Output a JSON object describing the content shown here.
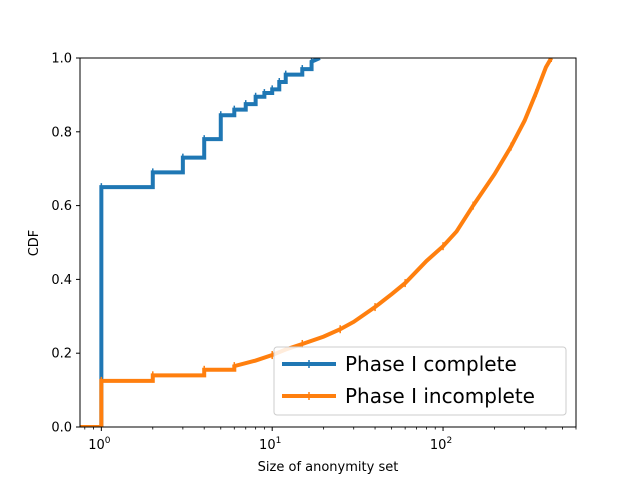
{
  "chart_data": {
    "type": "line",
    "xlabel": "Size of anonymity set",
    "ylabel": "CDF",
    "xscale": "log",
    "xlim": [
      0.75,
      600
    ],
    "ylim": [
      0,
      1
    ],
    "x_ticks": [
      {
        "value": 1,
        "base": "10",
        "exp": "0"
      },
      {
        "value": 10,
        "base": "10",
        "exp": "1"
      },
      {
        "value": 100,
        "base": "10",
        "exp": "2"
      }
    ],
    "y_ticks": [
      "0.0",
      "0.2",
      "0.4",
      "0.6",
      "0.8",
      "1.0"
    ],
    "legend_position": "lower-right",
    "grid": false,
    "series": [
      {
        "name": "Phase I complete",
        "color": "#1f77b4",
        "style": "step",
        "x": [
          0.75,
          1,
          1,
          2,
          2,
          3,
          3,
          4,
          4,
          5,
          5,
          6,
          6,
          7,
          7,
          8,
          8,
          9,
          9,
          10,
          10,
          11,
          11,
          12,
          12,
          15,
          15,
          17,
          17,
          19
        ],
        "y": [
          0,
          0,
          0.65,
          0.65,
          0.69,
          0.69,
          0.73,
          0.73,
          0.78,
          0.78,
          0.845,
          0.845,
          0.86,
          0.86,
          0.875,
          0.875,
          0.895,
          0.895,
          0.905,
          0.905,
          0.915,
          0.915,
          0.935,
          0.935,
          0.955,
          0.955,
          0.97,
          0.97,
          0.99,
          1.0
        ]
      },
      {
        "name": "Phase I incomplete",
        "color": "#ff7f0e",
        "style": "step",
        "x": [
          0.75,
          1,
          1,
          2,
          2,
          4,
          4,
          6,
          6,
          8,
          10,
          12,
          15,
          20,
          25,
          30,
          40,
          50,
          60,
          80,
          100,
          120,
          150,
          200,
          250,
          300,
          350,
          400,
          430
        ],
        "y": [
          0,
          0,
          0.125,
          0.125,
          0.14,
          0.14,
          0.155,
          0.155,
          0.165,
          0.18,
          0.195,
          0.21,
          0.225,
          0.245,
          0.265,
          0.285,
          0.325,
          0.36,
          0.39,
          0.45,
          0.49,
          0.53,
          0.6,
          0.685,
          0.76,
          0.83,
          0.905,
          0.975,
          1.0
        ]
      }
    ]
  }
}
